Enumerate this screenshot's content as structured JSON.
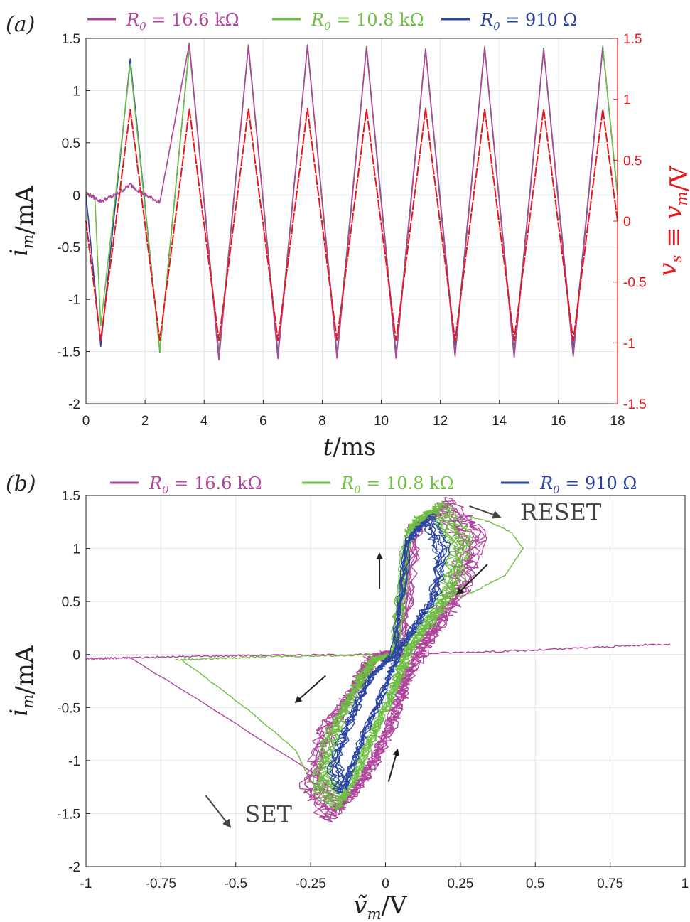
{
  "colors": {
    "magenta": "#b0449c",
    "green": "#6cbf40",
    "blue": "#2a44a3",
    "red": "#e8161b",
    "grid": "#e4e4e4",
    "axis": "#262626"
  },
  "chart_data": [
    {
      "panel": "a",
      "panel_label": "(a)",
      "type": "line",
      "xlabel": "t/ms",
      "ylabel": "i_m/mA",
      "y2label": "v_s ≡ v_m/V",
      "xlim": [
        0,
        18
      ],
      "ylim": [
        -2,
        1.5
      ],
      "y2lim": [
        -1.5,
        1.5
      ],
      "x_ticks": [
        "0",
        "2",
        "4",
        "6",
        "8",
        "10",
        "12",
        "14",
        "16",
        "18"
      ],
      "y_ticks": [
        "-2",
        "-1.5",
        "-1",
        "-0.5",
        "0",
        "0.5",
        "1",
        "1.5"
      ],
      "y2_ticks": [
        "-1.5",
        "-1",
        "-0.5",
        "0",
        "0.5",
        "1",
        "1.5"
      ],
      "grid": true,
      "legend": {
        "placement": "top",
        "entries": [
          {
            "label": "R_0 = 16.6 kΩ",
            "color_key": "magenta"
          },
          {
            "label": "R_0 = 10.8 kΩ",
            "color_key": "green"
          },
          {
            "label": "R_0 = 910 Ω",
            "color_key": "blue"
          }
        ]
      },
      "series": [
        {
          "name": "R_0 = 910 Ω",
          "axis": "left",
          "color_key": "blue",
          "x": [
            0,
            0.5,
            1.5,
            2.5,
            3.5,
            4.5,
            5.5,
            6.5,
            7.5,
            8.5,
            9.5,
            10.5,
            11.5,
            12.5,
            13.5,
            14.5,
            15.5,
            16.5,
            17.5,
            18
          ],
          "y": [
            0,
            -1.45,
            1.3,
            -1.5,
            1.42,
            -1.52,
            1.42,
            -1.52,
            1.42,
            -1.52,
            1.42,
            -1.52,
            1.4,
            -1.5,
            1.42,
            -1.52,
            1.4,
            -1.5,
            1.42,
            0
          ]
        },
        {
          "name": "R_0 = 10.8 kΩ",
          "axis": "left",
          "color_key": "green",
          "x": [
            0,
            0.3,
            0.5,
            1.5,
            2.5,
            3.5,
            4.5,
            5.5,
            6.5,
            7.5,
            8.5,
            9.5,
            10.5,
            11.5,
            12.5,
            13.5,
            14.5,
            15.5,
            16.5,
            17.5,
            18
          ],
          "y": [
            0.02,
            -0.02,
            -1.25,
            1.25,
            -1.5,
            1.42,
            -1.55,
            1.44,
            -1.55,
            1.44,
            -1.55,
            1.42,
            -1.55,
            1.4,
            -1.55,
            1.42,
            -1.55,
            1.4,
            -1.55,
            1.42,
            0
          ]
        },
        {
          "name": "R_0 = 16.6 kΩ",
          "axis": "left",
          "color_key": "magenta",
          "x": [
            0,
            0.5,
            1.0,
            1.5,
            2.0,
            2.5,
            3.5,
            4.5,
            5.5,
            6.5,
            7.5,
            8.5,
            9.5,
            10.5,
            11.5,
            12.5,
            13.5,
            14.5,
            15.5,
            16.5,
            17.5
          ],
          "y": [
            0.02,
            -0.06,
            0.0,
            0.1,
            0.0,
            -0.07,
            1.45,
            -1.58,
            1.43,
            -1.57,
            1.43,
            -1.57,
            1.41,
            -1.57,
            1.39,
            -1.54,
            1.41,
            -1.56,
            1.39,
            -1.55,
            1.41
          ]
        },
        {
          "name": "v_s",
          "axis": "right",
          "color_key": "red",
          "x": [
            0,
            0.5,
            1.5,
            2.5,
            3.5,
            4.5,
            5.5,
            6.5,
            7.5,
            8.5,
            9.5,
            10.5,
            11.5,
            12.5,
            13.5,
            14.5,
            15.5,
            16.5,
            17.5,
            18
          ],
          "y": [
            0,
            -0.98,
            0.92,
            -0.98,
            0.92,
            -0.98,
            0.92,
            -0.98,
            0.92,
            -0.98,
            0.92,
            -0.98,
            0.92,
            -0.98,
            0.92,
            -0.98,
            0.92,
            -0.98,
            0.92,
            0
          ]
        }
      ]
    },
    {
      "panel": "b",
      "panel_label": "(b)",
      "type": "line",
      "xlabel": "ṽ_m/V",
      "ylabel": "i_m/mA",
      "xlim": [
        -1,
        1
      ],
      "ylim": [
        -2,
        1.5
      ],
      "x_ticks": [
        "-1",
        "-0.75",
        "-0.5",
        "-0.25",
        "0",
        "0.25",
        "0.5",
        "0.75",
        "1"
      ],
      "y_ticks": [
        "-2",
        "-1.5",
        "-1",
        "-0.5",
        "0",
        "0.5",
        "1",
        "1.5"
      ],
      "grid": true,
      "legend": {
        "placement": "top",
        "entries": [
          {
            "label": "R_0 = 16.6 kΩ",
            "color_key": "magenta"
          },
          {
            "label": "R_0 = 10.8 kΩ",
            "color_key": "green"
          },
          {
            "label": "R_0 = 910 Ω",
            "color_key": "blue"
          }
        ]
      },
      "annotations": [
        {
          "text": "RESET",
          "x": 0.45,
          "y": 1.27
        },
        {
          "text": "SET",
          "x": -0.47,
          "y": -1.58
        }
      ],
      "series": [
        {
          "name": "R_0 = 16.6 kΩ",
          "color_key": "magenta",
          "role": "loop",
          "x": [
            0.05,
            0.1,
            0.2,
            0.3,
            0.25,
            0.18,
            0.12,
            0.06,
            0.0,
            -0.08,
            -0.18,
            -0.25,
            -0.2,
            -0.1,
            -0.05,
            0.0,
            0.05
          ],
          "y": [
            0.0,
            1.2,
            1.4,
            1.1,
            0.6,
            0.3,
            0.05,
            -0.3,
            -0.8,
            -1.2,
            -1.5,
            -1.2,
            -0.7,
            -0.3,
            -0.05,
            0.0,
            0.0
          ]
        },
        {
          "name": "R_0 = 10.8 kΩ",
          "color_key": "green",
          "role": "loop",
          "x": [
            0.03,
            0.08,
            0.18,
            0.26,
            0.22,
            0.15,
            0.08,
            0.03,
            -0.05,
            -0.15,
            -0.22,
            -0.18,
            -0.1,
            -0.04,
            0.03
          ],
          "y": [
            0.0,
            1.2,
            1.38,
            1.05,
            0.6,
            0.3,
            0.05,
            -0.3,
            -0.8,
            -1.4,
            -1.2,
            -0.75,
            -0.3,
            -0.05,
            0.0
          ]
        },
        {
          "name": "R_0 = 910 Ω",
          "color_key": "blue",
          "role": "loop",
          "x": [
            0.03,
            0.08,
            0.15,
            0.2,
            0.17,
            0.1,
            0.05,
            0.0,
            -0.08,
            -0.15,
            -0.18,
            -0.12,
            -0.05,
            0.03
          ],
          "y": [
            0.0,
            1.1,
            1.3,
            1.0,
            0.55,
            0.25,
            0.05,
            -0.3,
            -0.8,
            -1.3,
            -1.05,
            -0.6,
            -0.2,
            0.0
          ]
        },
        {
          "name": "R_0 = 16.6 kΩ",
          "color_key": "magenta",
          "role": "off-state",
          "x": [
            -1.0,
            -0.85,
            -0.5,
            0.0,
            0.5,
            0.95
          ],
          "y": [
            -0.04,
            -0.03,
            -0.01,
            0.0,
            0.04,
            0.1
          ]
        },
        {
          "name": "R_0 = 16.6 kΩ",
          "color_key": "magenta",
          "role": "switch",
          "x": [
            -0.85,
            -0.22
          ],
          "y": [
            -0.03,
            -1.15
          ]
        },
        {
          "name": "R_0 = 10.8 kΩ",
          "color_key": "green",
          "role": "off-state",
          "x": [
            -0.7,
            -0.4,
            0.0
          ],
          "y": [
            -0.05,
            -0.02,
            0.0
          ]
        },
        {
          "name": "R_0 = 10.8 kΩ",
          "color_key": "green",
          "role": "switch",
          "x": [
            -0.68,
            -0.46,
            -0.4,
            -0.3,
            -0.25,
            -0.2
          ],
          "y": [
            -0.05,
            -0.52,
            -0.66,
            -0.9,
            -1.2,
            -1.3
          ]
        },
        {
          "name": "R_0 = 10.8 kΩ",
          "color_key": "green",
          "role": "reset",
          "x": [
            0.05,
            0.12,
            0.2,
            0.3,
            0.4,
            0.46,
            0.42,
            0.35,
            0.28
          ],
          "y": [
            0.0,
            0.3,
            0.5,
            0.6,
            0.75,
            1.0,
            1.15,
            1.25,
            1.3
          ]
        }
      ]
    }
  ]
}
